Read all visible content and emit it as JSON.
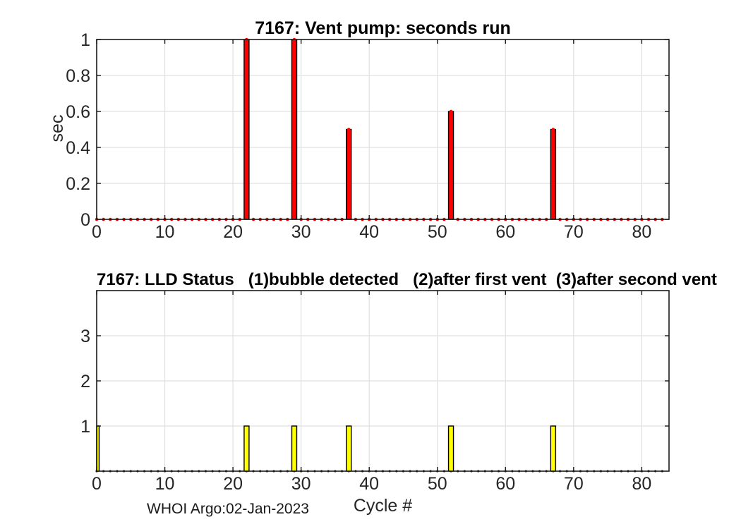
{
  "figure": {
    "background": "#ffffff",
    "footer": "WHOI Argo:02-Jan-2023"
  },
  "colors": {
    "axis": "#1a1a1a",
    "grid": "#e0e0e0",
    "tick_text": "#262626",
    "title_text": "#000000"
  },
  "chart_data": [
    {
      "type": "bar",
      "title": "7167: Vent pump: seconds run",
      "xlabel": "",
      "ylabel": "sec",
      "xlim": [
        0,
        84
      ],
      "ylim": [
        0,
        1
      ],
      "xticks": [
        0,
        10,
        20,
        30,
        40,
        50,
        60,
        70,
        80
      ],
      "xtick_labels": [
        "0",
        "10",
        "20",
        "30",
        "40",
        "50",
        "60",
        "70",
        "80"
      ],
      "yticks": [
        0,
        0.2,
        0.4,
        0.6,
        0.8,
        1
      ],
      "ytick_labels": [
        "0",
        "0.2",
        "0.4",
        "0.6",
        "0.8",
        "1"
      ],
      "grid": true,
      "bar_color": "#ff0000",
      "bar_edge_color": "#000000",
      "marker_color": "#ff0000",
      "marker_style": "dot-at-series-value",
      "cycle_first": 0,
      "cycle_last": 83,
      "baseline_value": 0,
      "bars": [
        {
          "x": 22,
          "y": 1
        },
        {
          "x": 29,
          "y": 1
        },
        {
          "x": 37,
          "y": 0.5
        },
        {
          "x": 52,
          "y": 0.6
        },
        {
          "x": 67,
          "y": 0.5
        }
      ]
    },
    {
      "type": "bar",
      "title": "7167: LLD Status   (1)bubble detected   (2)after first vent  (3)after second vent",
      "xlabel": "Cycle #",
      "ylabel": "",
      "xlim": [
        0,
        84
      ],
      "ylim": [
        0,
        4
      ],
      "xticks": [
        0,
        10,
        20,
        30,
        40,
        50,
        60,
        70,
        80
      ],
      "xtick_labels": [
        "0",
        "10",
        "20",
        "30",
        "40",
        "50",
        "60",
        "70",
        "80"
      ],
      "yticks": [
        1,
        2,
        3
      ],
      "ytick_labels": [
        "1",
        "2",
        "3"
      ],
      "grid": true,
      "bar_color": "#ffff00",
      "bar_edge_color": "#000000",
      "marker_color": "#262626",
      "marker_style": "dot-at-baseline",
      "cycle_first": 0,
      "cycle_last": 83,
      "baseline_value": 0,
      "bars": [
        {
          "x": 0,
          "y": 1
        },
        {
          "x": 22,
          "y": 1
        },
        {
          "x": 29,
          "y": 1
        },
        {
          "x": 37,
          "y": 1
        },
        {
          "x": 52,
          "y": 1
        },
        {
          "x": 67,
          "y": 1
        }
      ]
    }
  ]
}
